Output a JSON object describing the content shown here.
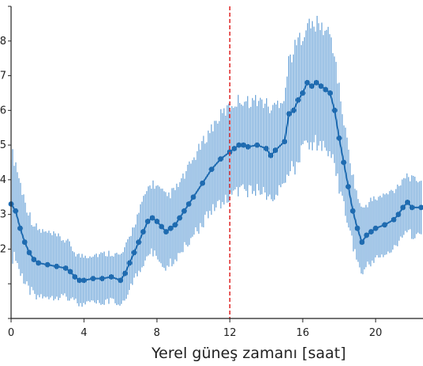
{
  "chart_data": {
    "type": "line",
    "xlabel": "Yerel güneş zamanı [saat]",
    "ylabel": "",
    "xlim": [
      0,
      22.6
    ],
    "ylim": [
      0,
      9
    ],
    "xticks": [
      0,
      4,
      8,
      12,
      16,
      20
    ],
    "yticks": [
      0,
      1,
      2,
      3,
      4,
      5,
      6,
      7,
      8,
      9
    ],
    "ytick_labels_visible": [
      "2",
      "3",
      "4",
      "5",
      "6",
      "7",
      "8"
    ],
    "grid": false,
    "reference_line": {
      "x": 12,
      "color": "#e03030",
      "style": "dashed"
    },
    "colors": {
      "marker": "#1f6bb0",
      "errorbar": "#6aa3d8"
    },
    "series": [
      {
        "x": [
          0.0,
          0.25,
          0.5,
          0.75,
          1.0,
          1.25,
          1.5,
          2.0,
          2.5,
          3.0,
          3.25,
          3.5,
          3.75,
          4.0,
          4.5,
          5.0,
          5.5,
          6.0,
          6.25,
          6.5,
          6.75,
          7.0,
          7.25,
          7.5,
          7.75,
          8.0,
          8.25,
          8.5,
          8.75,
          9.0,
          9.25,
          9.5,
          9.75,
          10.0,
          10.5,
          11.0,
          11.5,
          12.0,
          12.25,
          12.5,
          12.75,
          13.0,
          13.5,
          14.0,
          14.25,
          14.5,
          15.0,
          15.25,
          15.5,
          15.75,
          16.0,
          16.25,
          16.5,
          16.75,
          17.0,
          17.25,
          17.5,
          17.75,
          18.0,
          18.25,
          18.5,
          18.75,
          19.0,
          19.25,
          19.5,
          19.75,
          20.0,
          20.5,
          21.0,
          21.25,
          21.5,
          21.75,
          22.0,
          22.5
        ],
        "y": [
          3.3,
          3.1,
          2.6,
          2.2,
          1.9,
          1.7,
          1.6,
          1.55,
          1.5,
          1.45,
          1.35,
          1.2,
          1.1,
          1.1,
          1.15,
          1.15,
          1.2,
          1.1,
          1.3,
          1.6,
          1.9,
          2.2,
          2.5,
          2.8,
          2.9,
          2.8,
          2.65,
          2.5,
          2.6,
          2.7,
          2.9,
          3.1,
          3.3,
          3.5,
          3.9,
          4.3,
          4.6,
          4.8,
          4.9,
          5.0,
          5.0,
          4.95,
          5.0,
          4.9,
          4.7,
          4.85,
          5.1,
          5.9,
          6.0,
          6.3,
          6.5,
          6.8,
          6.7,
          6.8,
          6.7,
          6.6,
          6.5,
          6.0,
          5.2,
          4.5,
          3.8,
          3.1,
          2.6,
          2.2,
          2.4,
          2.5,
          2.6,
          2.7,
          2.85,
          3.0,
          3.2,
          3.35,
          3.2,
          3.2
        ],
        "err": [
          1.5,
          1.4,
          1.3,
          1.2,
          1.1,
          1.0,
          0.95,
          0.9,
          0.85,
          0.8,
          0.75,
          0.7,
          0.7,
          0.7,
          0.7,
          0.7,
          0.7,
          0.7,
          0.7,
          0.75,
          0.8,
          0.85,
          0.9,
          0.95,
          1.0,
          1.0,
          1.0,
          1.0,
          1.0,
          1.0,
          1.0,
          1.0,
          1.05,
          1.1,
          1.15,
          1.2,
          1.25,
          1.3,
          1.3,
          1.3,
          1.3,
          1.3,
          1.3,
          1.3,
          1.3,
          1.3,
          1.3,
          1.6,
          1.7,
          1.7,
          1.7,
          1.7,
          1.7,
          1.7,
          1.7,
          1.7,
          1.7,
          1.6,
          1.4,
          1.2,
          1.1,
          1.0,
          0.95,
          0.9,
          0.9,
          0.9,
          0.85,
          0.85,
          0.85,
          0.85,
          0.85,
          0.8,
          0.8,
          0.8
        ]
      }
    ]
  }
}
